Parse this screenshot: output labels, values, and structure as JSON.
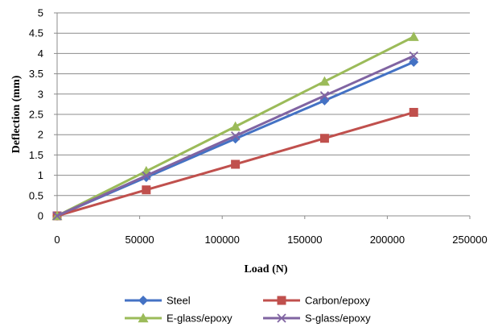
{
  "chart_data": {
    "type": "line",
    "title": "",
    "xlabel": "Load (N)",
    "ylabel": "Deflection (mm)",
    "xlim": [
      0,
      250000
    ],
    "ylim": [
      0,
      5
    ],
    "xticks": [
      0,
      50000,
      100000,
      150000,
      200000,
      250000
    ],
    "yticks": [
      0,
      0.5,
      1,
      1.5,
      2,
      2.5,
      3,
      3.5,
      4,
      4.5,
      5
    ],
    "xtick_labels": [
      "0",
      "50000",
      "100000",
      "150000",
      "200000",
      "250000"
    ],
    "ytick_labels": [
      "0",
      "0.5",
      "1",
      "1.5",
      "2",
      "2.5",
      "3",
      "3.5",
      "4",
      "4.5",
      "5"
    ],
    "grid": "horizontal",
    "legend_position": "bottom",
    "x": [
      0,
      54000,
      108000,
      162000,
      216000
    ],
    "series": [
      {
        "name": "Steel",
        "values": [
          0,
          0.95,
          1.9,
          2.84,
          3.79
        ],
        "color": "#4472C4",
        "marker": "diamond"
      },
      {
        "name": "Carbon/epoxy",
        "values": [
          0,
          0.64,
          1.27,
          1.91,
          2.55
        ],
        "color": "#C0504D",
        "marker": "square"
      },
      {
        "name": "E-glass/epoxy",
        "values": [
          0,
          1.1,
          2.2,
          3.31,
          4.41
        ],
        "color": "#9BBB59",
        "marker": "triangle"
      },
      {
        "name": "S-glass/epoxy",
        "values": [
          0,
          0.99,
          1.97,
          2.96,
          3.94
        ],
        "color": "#8064A2",
        "marker": "x"
      }
    ]
  }
}
